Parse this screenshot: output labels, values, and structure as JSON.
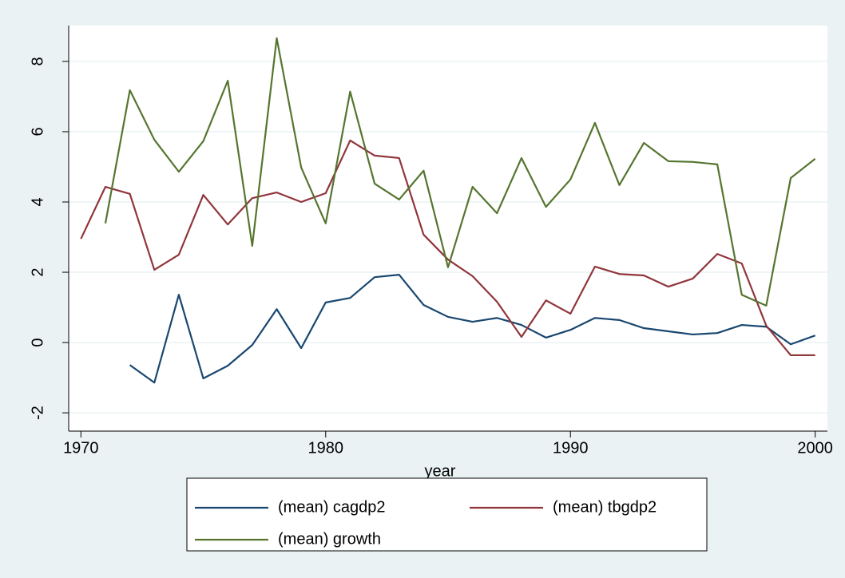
{
  "chart_data": {
    "type": "line",
    "x_label": "year",
    "x": [
      1970,
      1971,
      1972,
      1973,
      1974,
      1975,
      1976,
      1977,
      1978,
      1979,
      1980,
      1981,
      1982,
      1983,
      1984,
      1985,
      1986,
      1987,
      1988,
      1989,
      1990,
      1991,
      1992,
      1993,
      1994,
      1995,
      1996,
      1997,
      1998,
      1999,
      2000
    ],
    "series": [
      {
        "name": "(mean) cagdp2",
        "color": "#1a476f",
        "values": [
          null,
          null,
          -0.64,
          -1.14,
          1.36,
          -1.02,
          -0.66,
          -0.07,
          0.95,
          -0.16,
          1.14,
          1.27,
          1.86,
          1.93,
          1.07,
          0.73,
          0.59,
          0.7,
          0.5,
          0.14,
          0.36,
          0.7,
          0.64,
          0.41,
          0.32,
          0.23,
          0.27,
          0.5,
          0.45,
          -0.05,
          0.2
        ]
      },
      {
        "name": "(mean) tbgdp2",
        "color": "#90353b",
        "values": [
          2.95,
          4.43,
          4.23,
          2.07,
          2.5,
          4.2,
          3.36,
          4.11,
          4.27,
          4.0,
          4.25,
          5.75,
          5.32,
          5.25,
          3.07,
          2.36,
          1.89,
          1.16,
          0.16,
          1.2,
          0.82,
          2.16,
          1.95,
          1.91,
          1.59,
          1.82,
          2.52,
          2.25,
          0.48,
          -0.36,
          -0.36
        ]
      },
      {
        "name": "(mean) growth",
        "color": "#55752f",
        "values": [
          null,
          3.39,
          7.18,
          5.77,
          4.86,
          5.73,
          7.45,
          2.75,
          8.66,
          4.98,
          3.39,
          7.14,
          4.52,
          4.07,
          4.89,
          2.14,
          4.43,
          3.68,
          5.25,
          3.86,
          4.64,
          6.25,
          4.48,
          5.68,
          5.16,
          5.14,
          5.07,
          1.36,
          1.05,
          4.68,
          5.23
        ]
      }
    ],
    "xlim": [
      1969.5,
      2000.5
    ],
    "xticks": [
      1970,
      1980,
      1990,
      2000
    ],
    "ylim": [
      -2.52,
      9.02
    ],
    "yticks": [
      -2,
      0,
      2,
      4,
      6,
      8
    ],
    "grid": true,
    "legend": "bottom"
  }
}
